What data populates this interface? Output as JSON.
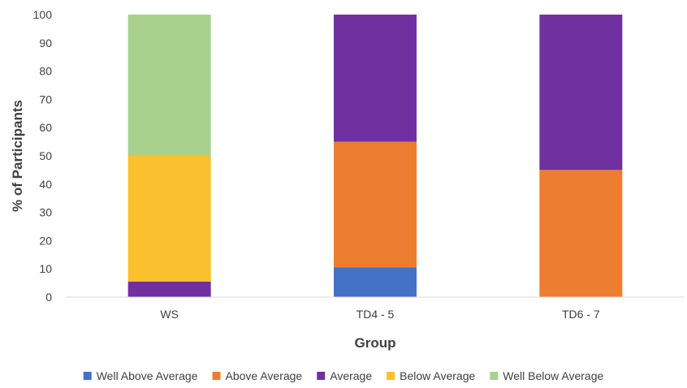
{
  "chart_data": {
    "type": "bar",
    "stacked": true,
    "title": "",
    "xlabel": "Group",
    "ylabel": "% of Participants",
    "ylim": [
      0,
      100
    ],
    "yticks": [
      0,
      10,
      20,
      30,
      40,
      50,
      60,
      70,
      80,
      90,
      100
    ],
    "grid": false,
    "legend_position": "bottom",
    "categories": [
      "WS",
      "TD4 - 5",
      "TD6 - 7"
    ],
    "series": [
      {
        "name": "Well Above Average",
        "color": "#4472C4",
        "values": [
          0,
          10.5,
          0
        ]
      },
      {
        "name": "Above Average",
        "color": "#ED7D31",
        "values": [
          0,
          44.5,
          45
        ]
      },
      {
        "name": "Average",
        "color": "#7030A0",
        "values": [
          5.5,
          45,
          55
        ]
      },
      {
        "name": "Below Average",
        "color": "#FBC02D",
        "values": [
          44.5,
          0,
          0
        ]
      },
      {
        "name": "Well Below Average",
        "color": "#A9D18E",
        "values": [
          50,
          0,
          0
        ]
      }
    ]
  }
}
